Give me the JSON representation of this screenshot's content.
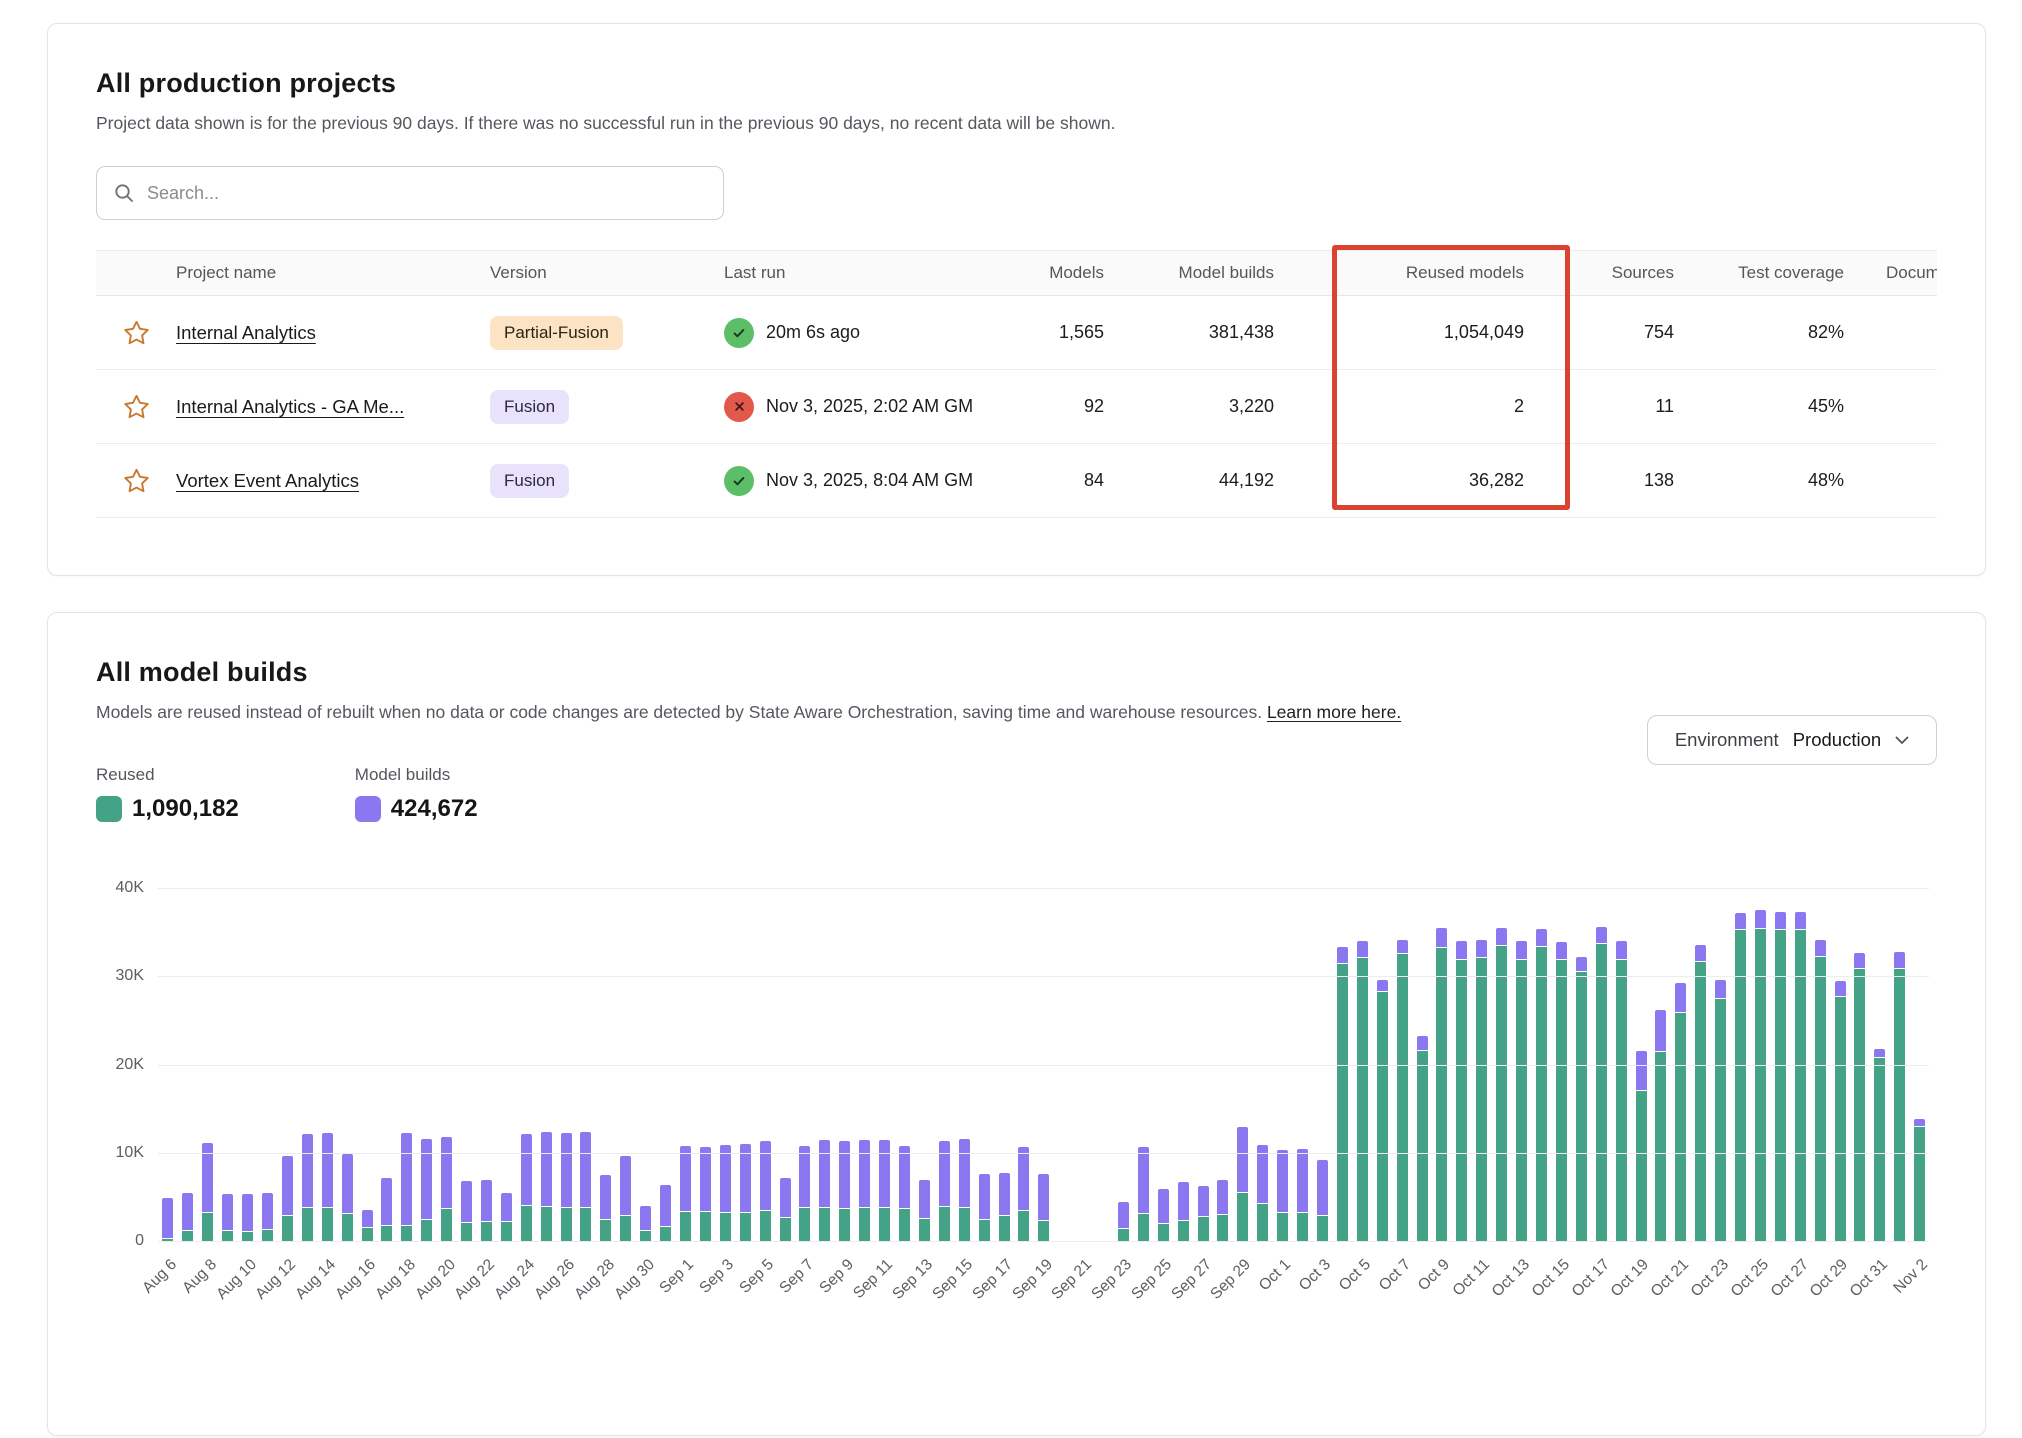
{
  "projects_card": {
    "title": "All production projects",
    "subtitle": "Project data shown is for the previous 90 days. If there was no successful run in the previous 90 days, no recent data will be shown.",
    "search_placeholder": "Search...",
    "columns": [
      "Project name",
      "Version",
      "Last run",
      "Models",
      "Model builds",
      "Reused models",
      "Sources",
      "Test coverage",
      "Docum"
    ],
    "highlight_column": "Reused models",
    "highlight_color": "#d9432f",
    "rows": [
      {
        "name": "Internal Analytics",
        "version": "Partial-Fusion",
        "version_style": "peach",
        "status": "success",
        "last_run": "20m 6s ago",
        "models": "1,565",
        "model_builds": "381,438",
        "reused_models": "1,054,049",
        "sources": "754",
        "test_coverage": "82%"
      },
      {
        "name": "Internal Analytics - GA Me...",
        "version": "Fusion",
        "version_style": "lavender",
        "status": "error",
        "last_run": "Nov 3, 2025, 2:02 AM GM",
        "models": "92",
        "model_builds": "3,220",
        "reused_models": "2",
        "sources": "11",
        "test_coverage": "45%"
      },
      {
        "name": "Vortex Event Analytics",
        "version": "Fusion",
        "version_style": "lavender",
        "status": "success",
        "last_run": "Nov 3, 2025, 8:04 AM GM",
        "models": "84",
        "model_builds": "44,192",
        "reused_models": "36,282",
        "sources": "138",
        "test_coverage": "48%"
      }
    ]
  },
  "builds_card": {
    "title": "All model builds",
    "subtitle": "Models are reused instead of rebuilt when no data or code changes are detected by State Aware Orchestration, saving time and warehouse resources.",
    "link_text": "Learn more here.",
    "environment_label": "Environment",
    "environment_value": "Production",
    "legend": [
      {
        "label": "Reused",
        "value": "1,090,182",
        "color": "#44a287"
      },
      {
        "label": "Model builds",
        "value": "424,672",
        "color": "#8b77f0"
      }
    ]
  },
  "chart_data": {
    "type": "bar",
    "stacked": true,
    "title": "All model builds",
    "xlabel": "",
    "ylabel": "",
    "ylim": [
      0,
      40000
    ],
    "yticks": [
      0,
      10000,
      20000,
      30000,
      40000
    ],
    "ytick_labels": [
      "0",
      "10K",
      "20K",
      "30K",
      "40K"
    ],
    "grid": true,
    "legend_position": "top-left",
    "x_tick_every": 2,
    "x": [
      "Aug 6",
      "Aug 7",
      "Aug 8",
      "Aug 9",
      "Aug 10",
      "Aug 11",
      "Aug 12",
      "Aug 13",
      "Aug 14",
      "Aug 15",
      "Aug 16",
      "Aug 17",
      "Aug 18",
      "Aug 19",
      "Aug 20",
      "Aug 21",
      "Aug 22",
      "Aug 23",
      "Aug 24",
      "Aug 25",
      "Aug 26",
      "Aug 27",
      "Aug 28",
      "Aug 29",
      "Aug 30",
      "Aug 31",
      "Sep 1",
      "Sep 2",
      "Sep 3",
      "Sep 4",
      "Sep 5",
      "Sep 6",
      "Sep 7",
      "Sep 8",
      "Sep 9",
      "Sep 10",
      "Sep 11",
      "Sep 12",
      "Sep 13",
      "Sep 14",
      "Sep 15",
      "Sep 16",
      "Sep 17",
      "Sep 18",
      "Sep 19",
      "Sep 20",
      "Sep 21",
      "Sep 22",
      "Sep 23",
      "Sep 24",
      "Sep 25",
      "Sep 26",
      "Sep 27",
      "Sep 28",
      "Sep 29",
      "Sep 30",
      "Oct 1",
      "Oct 2",
      "Oct 3",
      "Oct 4",
      "Oct 5",
      "Oct 6",
      "Oct 7",
      "Oct 8",
      "Oct 9",
      "Oct 10",
      "Oct 11",
      "Oct 12",
      "Oct 13",
      "Oct 14",
      "Oct 15",
      "Oct 16",
      "Oct 17",
      "Oct 18",
      "Oct 19",
      "Oct 20",
      "Oct 21",
      "Oct 22",
      "Oct 23",
      "Oct 24",
      "Oct 25",
      "Oct 26",
      "Oct 27",
      "Oct 28",
      "Oct 29",
      "Oct 30",
      "Oct 31",
      "Nov 1",
      "Nov 2"
    ],
    "series": [
      {
        "name": "Reused",
        "color": "#44a287",
        "values": [
          300,
          1200,
          3300,
          1200,
          1100,
          1400,
          2900,
          3900,
          3900,
          3200,
          1600,
          1800,
          1800,
          2500,
          3700,
          2200,
          2300,
          2300,
          4100,
          4000,
          3800,
          3900,
          2500,
          3000,
          1200,
          1700,
          3400,
          3400,
          3300,
          3300,
          3500,
          2700,
          3800,
          3800,
          3700,
          3800,
          3800,
          3700,
          2600,
          4000,
          3900,
          2500,
          2900,
          3500,
          2400,
          0,
          0,
          0,
          1500,
          3200,
          2000,
          2400,
          2800,
          3100,
          5500,
          4300,
          3300,
          3300,
          3000,
          31500,
          32200,
          28300,
          32600,
          21700,
          33300,
          31900,
          32200,
          33500,
          32000,
          33400,
          31900,
          30600,
          33800,
          32000,
          17100,
          21500,
          26000,
          31700,
          27500,
          35400,
          35500,
          35400,
          35400,
          32300,
          27800,
          30900,
          20800,
          30900,
          13000
        ]
      },
      {
        "name": "Model builds",
        "color": "#8b77f0",
        "values": [
          4700,
          4400,
          7900,
          4200,
          4300,
          4200,
          6900,
          8300,
          8400,
          6800,
          2000,
          5500,
          10500,
          9200,
          8200,
          4700,
          4700,
          3300,
          8100,
          8500,
          8500,
          8600,
          5100,
          6800,
          2900,
          4800,
          7500,
          7400,
          7700,
          7800,
          7900,
          4500,
          7100,
          7800,
          7800,
          7800,
          7800,
          7200,
          4400,
          7500,
          7800,
          5200,
          4900,
          7300,
          5300,
          0,
          0,
          0,
          3000,
          7600,
          4000,
          4400,
          3500,
          3900,
          7500,
          6700,
          7100,
          7200,
          6300,
          1900,
          1900,
          1400,
          1600,
          1600,
          2300,
          2200,
          2000,
          2100,
          2100,
          2100,
          2100,
          1700,
          1900,
          2100,
          4600,
          4800,
          3300,
          2000,
          2200,
          1900,
          2100,
          2000,
          2000,
          1900,
          1800,
          1900,
          1100,
          2000,
          900
        ]
      }
    ]
  }
}
